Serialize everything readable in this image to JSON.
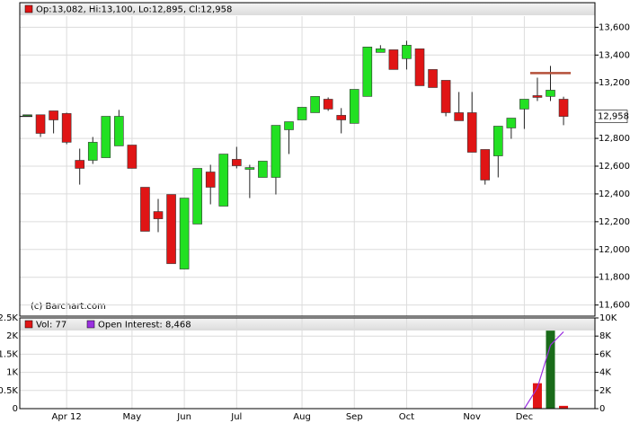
{
  "chart_data": [
    {
      "type": "candlestick",
      "legend": "Op:13,082, Hi:13,100, Lo:12,895, Cl:12,958",
      "watermark": "(c) Barchart.com",
      "categories": [
        null,
        null,
        null,
        "Apr 12",
        null,
        null,
        null,
        null,
        "May",
        null,
        null,
        null,
        "Jun",
        null,
        null,
        null,
        "Jul",
        null,
        null,
        null,
        null,
        "Aug",
        null,
        null,
        null,
        "Sep",
        null,
        null,
        null,
        "Oct",
        null,
        null,
        null,
        null,
        "Nov",
        null,
        null,
        null,
        "Dec",
        null,
        null,
        null
      ],
      "open": [
        12970,
        12970,
        12998,
        12979,
        12642,
        12642,
        12661,
        12746,
        12752,
        12448,
        12273,
        12396,
        11859,
        12183,
        12558,
        12312,
        12649,
        12577,
        12519,
        12519,
        12862,
        12933,
        12985,
        13082,
        12966,
        12908,
        13102,
        13419,
        13438,
        13374,
        13445,
        13296,
        13218,
        12985,
        12985,
        12720,
        12674,
        12875,
        13011,
        13108,
        13102,
        13082
      ],
      "high": [
        12970,
        12970,
        12998,
        12985,
        12726,
        12810,
        12959,
        13005,
        12752,
        12448,
        12364,
        12396,
        12370,
        12584,
        12610,
        12687,
        12739,
        12610,
        12636,
        12894,
        12920,
        13024,
        13102,
        13095,
        13018,
        13153,
        13458,
        13471,
        13438,
        13503,
        13445,
        13296,
        13218,
        13134,
        13134,
        12720,
        12888,
        12946,
        13082,
        13237,
        13322,
        13100
      ],
      "low": [
        12970,
        12810,
        12836,
        12758,
        12467,
        12616,
        12661,
        12746,
        12584,
        12131,
        12125,
        11898,
        11859,
        12183,
        12325,
        12312,
        12584,
        12370,
        12519,
        12396,
        12687,
        12933,
        12985,
        12998,
        12836,
        12908,
        13102,
        13419,
        13296,
        13296,
        13179,
        13166,
        12959,
        12927,
        12700,
        12467,
        12519,
        12797,
        12868,
        13069,
        13069,
        12895
      ],
      "close": [
        12970,
        12836,
        12933,
        12772,
        12584,
        12772,
        12959,
        12959,
        12584,
        12131,
        12221,
        11898,
        12370,
        12584,
        12448,
        12687,
        12603,
        12590,
        12636,
        12894,
        12920,
        13024,
        13102,
        13011,
        12933,
        13153,
        13458,
        13445,
        13296,
        13471,
        13179,
        13166,
        12985,
        12927,
        12700,
        12500,
        12888,
        12946,
        13082,
        13095,
        13147,
        12958
      ],
      "up_color": "#22e022",
      "down_color": "#e01515",
      "last_price": {
        "value": 12958,
        "label": "12,958"
      },
      "reference_line": {
        "value": 13270,
        "color": "#b5503a"
      },
      "ylim": [
        11520,
        13680
      ],
      "yticks": [
        {
          "value": 11600,
          "label": "11,600"
        },
        {
          "value": 11800,
          "label": "11,800"
        },
        {
          "value": 12000,
          "label": "12,000"
        },
        {
          "value": 12200,
          "label": "12,200"
        },
        {
          "value": 12400,
          "label": "12,400"
        },
        {
          "value": 12600,
          "label": "12,600"
        },
        {
          "value": 12800,
          "label": "12,800"
        },
        {
          "value": 13200,
          "label": "13,200"
        },
        {
          "value": 13400,
          "label": "13,400"
        },
        {
          "value": 13600,
          "label": "13,600"
        }
      ],
      "grid": true
    },
    {
      "type": "volume",
      "series": [
        {
          "name": "Vol: 77",
          "up_color": "#1a6b1a",
          "down_color": "#e01515",
          "legend_color": "#e01515",
          "values": [
            null,
            null,
            null,
            null,
            null,
            null,
            null,
            null,
            null,
            null,
            null,
            null,
            null,
            null,
            null,
            null,
            null,
            null,
            null,
            null,
            null,
            null,
            null,
            null,
            null,
            null,
            null,
            null,
            null,
            null,
            null,
            null,
            null,
            null,
            null,
            null,
            null,
            null,
            null,
            700,
            2150,
            77
          ]
        },
        {
          "name": "Open Interest: 8,468",
          "color": "#9a30e0",
          "axis": "y2",
          "values": [
            null,
            null,
            null,
            null,
            null,
            null,
            null,
            null,
            null,
            null,
            null,
            null,
            null,
            null,
            null,
            null,
            null,
            null,
            null,
            null,
            null,
            null,
            null,
            null,
            null,
            null,
            null,
            null,
            null,
            null,
            null,
            null,
            null,
            null,
            null,
            null,
            null,
            null,
            0,
            2300,
            7000,
            8468
          ]
        }
      ],
      "ylim": [
        0,
        2500
      ],
      "yticks": [
        0,
        {
          "value": 500,
          "label": "0.5K"
        },
        {
          "value": 1000,
          "label": "1K"
        },
        {
          "value": 1500,
          "label": "1.5K"
        },
        {
          "value": 2000,
          "label": "2K"
        },
        {
          "value": 2500,
          "label": "2.5K"
        }
      ],
      "y2lim": [
        0,
        10000
      ],
      "y2ticks": [
        0,
        {
          "value": 2000,
          "label": "2K"
        },
        {
          "value": 4000,
          "label": "4K"
        },
        {
          "value": 6000,
          "label": "6K"
        },
        {
          "value": 8000,
          "label": "8K"
        },
        {
          "value": 10000,
          "label": "10K"
        }
      ],
      "grid": true
    }
  ]
}
